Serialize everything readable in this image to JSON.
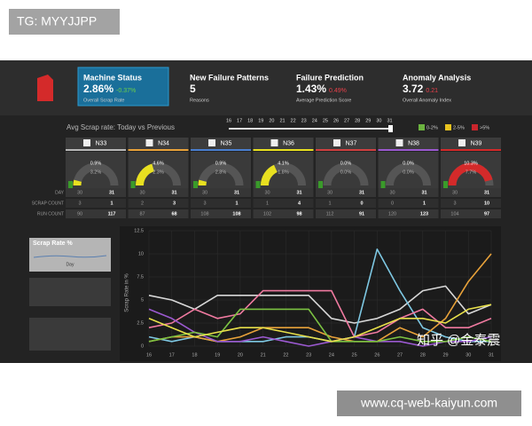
{
  "header": {
    "tag": "TG: MYYJJPP",
    "watermark": "知乎 @金泰震",
    "footer_url": "www.cq-web-kaiyun.com"
  },
  "kpis": [
    {
      "title": "Machine Status",
      "value": "2.86%",
      "delta": "-0.37%",
      "subtitle": "Overall Scrap Rate"
    },
    {
      "title": "New Failure Patterns",
      "value": "5",
      "delta": "",
      "subtitle": "Reasons"
    },
    {
      "title": "Failure Prediction",
      "value": "1.43%",
      "delta": "0.49%",
      "subtitle": "Average Prediction Score"
    },
    {
      "title": "Anomaly Analysis",
      "value": "3.72",
      "delta": "0.21",
      "subtitle": "Overall Anomaly Index"
    }
  ],
  "scrap_panel": {
    "title": "Avg Scrap rate: Today vs Previous",
    "slider": [
      16,
      17,
      18,
      19,
      20,
      21,
      22,
      23,
      24,
      25,
      26,
      27,
      28,
      29,
      30,
      31
    ],
    "legend": [
      {
        "label": "0-2%",
        "color": "#6cb33f"
      },
      {
        "label": "2-5%",
        "color": "#e8c31f"
      },
      {
        "label": ">5%",
        "color": "#c9252c"
      }
    ],
    "row_labels": [
      "DAY",
      "SCRAP COUNT",
      "RUN COUNT"
    ],
    "machines": [
      {
        "name": "N33",
        "color": "#e8e020",
        "underline": "#b8b8b8",
        "today": 0.9,
        "today_label": "0.9%",
        "previous": "3.2%",
        "day": [
          30,
          31
        ],
        "scrap": [
          3,
          1
        ],
        "run": [
          90,
          117
        ]
      },
      {
        "name": "N34",
        "color": "#e8e020",
        "underline": "#e8a23a",
        "today": 4.6,
        "today_label": "4.6%",
        "previous": "2.3%",
        "day": [
          30,
          31
        ],
        "scrap": [
          2,
          3
        ],
        "run": [
          87,
          68
        ]
      },
      {
        "name": "N35",
        "color": "#e8e020",
        "underline": "#4a7fd0",
        "today": 0.9,
        "today_label": "0.9%",
        "previous": "2.8%",
        "day": [
          30,
          31
        ],
        "scrap": [
          3,
          1
        ],
        "run": [
          108,
          108
        ]
      },
      {
        "name": "N36",
        "color": "#e8e020",
        "underline": "#e8e020",
        "today": 4.1,
        "today_label": "4.1%",
        "previous": "1.8%",
        "day": [
          30,
          31
        ],
        "scrap": [
          1,
          4
        ],
        "run": [
          102,
          98
        ]
      },
      {
        "name": "N37",
        "color": "#777777",
        "underline": "#d04040",
        "today": 0.0,
        "today_label": "0.0%",
        "previous": "0.0%",
        "day": [
          30,
          31
        ],
        "scrap": [
          1,
          0
        ],
        "run": [
          112,
          91
        ]
      },
      {
        "name": "N38",
        "color": "#777777",
        "underline": "#9b59d0",
        "today": 0.0,
        "today_label": "0.0%",
        "previous": "0.0%",
        "day": [
          30,
          31
        ],
        "scrap": [
          0,
          1
        ],
        "run": [
          120,
          123
        ]
      },
      {
        "name": "N39",
        "color": "#d42a2a",
        "underline": "#d42a2a",
        "today": 10.3,
        "today_label": "10.3%",
        "previous": "7.7%",
        "day": [
          30,
          31
        ],
        "scrap": [
          3,
          10
        ],
        "run": [
          104,
          97
        ]
      }
    ]
  },
  "sidebar": {
    "title": "Scrap Rate %",
    "sub": "Day"
  },
  "chart_data": {
    "type": "line",
    "ylabel": "Scrap Rate in %",
    "x": [
      16,
      17,
      18,
      19,
      20,
      21,
      22,
      23,
      24,
      25,
      26,
      27,
      28,
      29,
      30,
      31
    ],
    "xlim": [
      16,
      31
    ],
    "xticks": [
      16,
      17,
      18,
      19,
      20,
      21,
      22,
      23,
      24,
      25,
      26,
      27,
      28,
      29,
      30,
      31
    ],
    "ylim": [
      0,
      12.5
    ],
    "yticks": [
      0,
      2.5,
      5,
      7.5,
      10,
      12.5
    ],
    "grid": true,
    "series": [
      {
        "color": "#d8d8d8",
        "values": [
          5.5,
          5,
          4,
          5.5,
          5.5,
          5.5,
          5.5,
          5.5,
          3,
          2.5,
          3,
          4,
          6,
          6.5,
          3.5,
          4.5
        ]
      },
      {
        "color": "#7ec8e3",
        "values": [
          1,
          0.5,
          1,
          0.5,
          0.5,
          0.5,
          1,
          1,
          0.5,
          1,
          10.5,
          6,
          2,
          1,
          0.5,
          0.5
        ]
      },
      {
        "color": "#e8a23a",
        "values": [
          0.5,
          1,
          1,
          0.5,
          1,
          2,
          2,
          2,
          1,
          0.5,
          0.5,
          2,
          1,
          3,
          7,
          10
        ]
      },
      {
        "color": "#f07aa0",
        "values": [
          2,
          2.5,
          4,
          3,
          3.5,
          6,
          6,
          6,
          6,
          1,
          1.5,
          3,
          4,
          2,
          2,
          3
        ]
      },
      {
        "color": "#9b59d0",
        "values": [
          4,
          3,
          1.5,
          0.5,
          0.5,
          1,
          0.5,
          0,
          0.5,
          1,
          0.5,
          0.5,
          0,
          0.5,
          0.5,
          1
        ]
      },
      {
        "color": "#7cc242",
        "values": [
          0.5,
          1,
          1.5,
          1,
          4,
          4,
          4,
          4,
          0.5,
          0.5,
          0.5,
          1,
          0.5,
          0.5,
          1,
          0.5
        ]
      },
      {
        "color": "#e8e04a",
        "values": [
          3,
          2,
          1,
          1.5,
          2,
          2,
          1.5,
          1,
          0.5,
          1,
          2,
          3,
          3,
          2.5,
          4,
          4.5
        ]
      }
    ]
  }
}
